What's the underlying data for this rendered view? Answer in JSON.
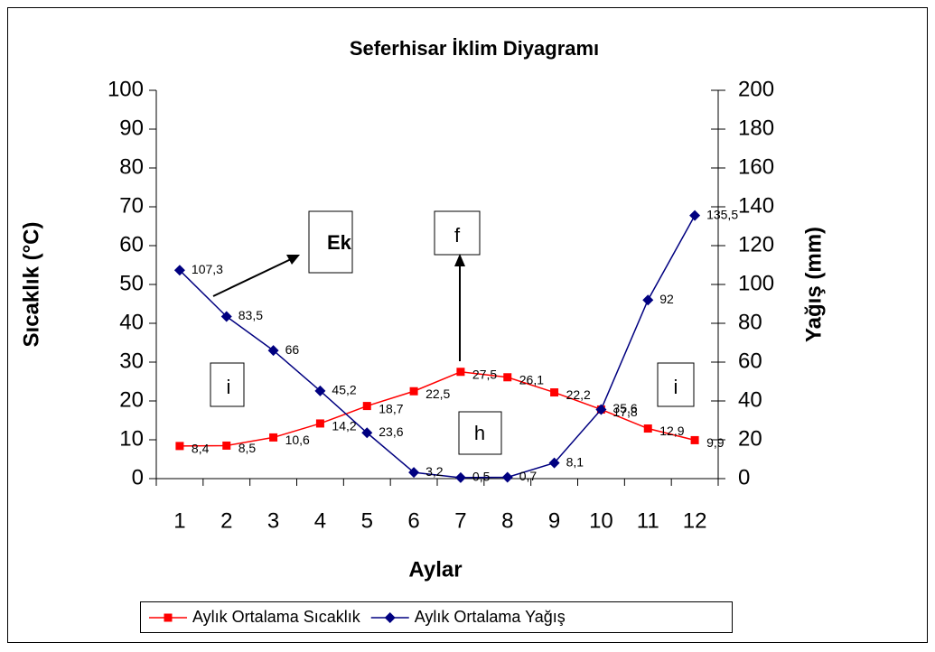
{
  "chart_data": {
    "type": "line",
    "title": "Seferhisar İklim Diyagramı",
    "xlabel": "Aylar",
    "ylabel": "Sıcaklık (°C)",
    "y2label": "Yağış (mm)",
    "categories": [
      1,
      2,
      3,
      4,
      5,
      6,
      7,
      8,
      9,
      10,
      11,
      12
    ],
    "series": [
      {
        "name": "Aylık Ortalama Sıcaklık",
        "color": "#ff0000",
        "marker": "square",
        "values": [
          8.4,
          8.5,
          10.6,
          14.2,
          18.7,
          22.5,
          27.5,
          26.1,
          22.2,
          17.8,
          12.9,
          9.9
        ],
        "value_labels": [
          "8,4",
          "8,5",
          "10,6",
          "14,2",
          "18,7",
          "22,5",
          "27,5",
          "26,1",
          "22,2",
          "17,8",
          "12,9",
          "9,9"
        ]
      },
      {
        "name": "Aylık Ortalama Yağış",
        "color": "#000080",
        "marker": "diamond",
        "axis": "y2",
        "values": [
          107.3,
          83.5,
          66,
          45.2,
          23.6,
          3.2,
          0.5,
          0.7,
          8.1,
          35.6,
          92,
          135.5
        ],
        "value_labels": [
          "107,3",
          "83,5",
          "66",
          "45,2",
          "23,6",
          "3,2",
          "0,5",
          "0,7",
          "8,1",
          "35,6",
          "92",
          "135,5"
        ]
      }
    ],
    "ylim": [
      0,
      100
    ],
    "yticks": [
      0,
      10,
      20,
      30,
      40,
      50,
      60,
      70,
      80,
      90,
      100
    ],
    "y2lim": [
      0,
      200
    ],
    "y2ticks": [
      0,
      20,
      40,
      60,
      80,
      100,
      120,
      140,
      160,
      180,
      200
    ],
    "legend": "bottom",
    "annotations": [
      "Ek",
      "f",
      "i",
      "h",
      "i"
    ]
  }
}
